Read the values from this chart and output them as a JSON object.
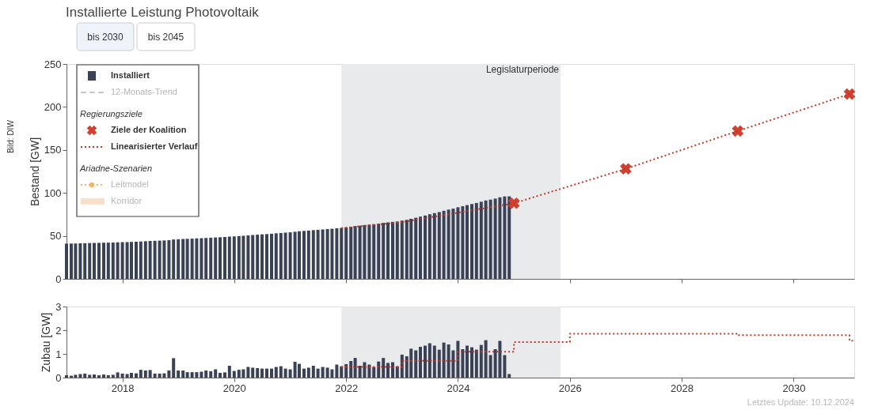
{
  "chart_data": [
    {
      "type": "bar",
      "title": "Installierte Leistung Photovoltaik",
      "ylabel": "Bestand [GW]",
      "x": [
        "2017-01",
        "2017-02",
        "2017-03",
        "2017-04",
        "2017-05",
        "2017-06",
        "2017-07",
        "2017-08",
        "2017-09",
        "2017-10",
        "2017-11",
        "2017-12",
        "2018-01",
        "2018-02",
        "2018-03",
        "2018-04",
        "2018-05",
        "2018-06",
        "2018-07",
        "2018-08",
        "2018-09",
        "2018-10",
        "2018-11",
        "2018-12",
        "2019-01",
        "2019-02",
        "2019-03",
        "2019-04",
        "2019-05",
        "2019-06",
        "2019-07",
        "2019-08",
        "2019-09",
        "2019-10",
        "2019-11",
        "2019-12",
        "2020-01",
        "2020-02",
        "2020-03",
        "2020-04",
        "2020-05",
        "2020-06",
        "2020-07",
        "2020-08",
        "2020-09",
        "2020-10",
        "2020-11",
        "2020-12",
        "2021-01",
        "2021-02",
        "2021-03",
        "2021-04",
        "2021-05",
        "2021-06",
        "2021-07",
        "2021-08",
        "2021-09",
        "2021-10",
        "2021-11",
        "2021-12",
        "2022-01",
        "2022-02",
        "2022-03",
        "2022-04",
        "2022-05",
        "2022-06",
        "2022-07",
        "2022-08",
        "2022-09",
        "2022-10",
        "2022-11",
        "2022-12",
        "2023-01",
        "2023-02",
        "2023-03",
        "2023-04",
        "2023-05",
        "2023-06",
        "2023-07",
        "2023-08",
        "2023-09",
        "2023-10",
        "2023-11",
        "2023-12",
        "2024-01",
        "2024-02",
        "2024-03",
        "2024-04",
        "2024-05",
        "2024-06",
        "2024-07",
        "2024-08",
        "2024-09",
        "2024-10",
        "2024-11",
        "2024-12"
      ],
      "xlim": [
        "2017-01",
        "2031-02"
      ],
      "xticks": [
        {
          "value": "2018",
          "label": null
        },
        {
          "value": "2020",
          "label": null
        },
        {
          "value": "2022",
          "label": null
        },
        {
          "value": "2024",
          "label": null
        },
        {
          "value": "2026",
          "label": null
        },
        {
          "value": "2028",
          "label": null
        },
        {
          "value": "2030",
          "label": null
        }
      ],
      "ylim": [
        0,
        250
      ],
      "yticks": [
        0,
        50,
        100,
        150,
        200,
        250
      ],
      "tick_labels": "y",
      "legend": "top left",
      "bands": [
        {
          "axis": "x",
          "from": "2021-12",
          "to": "2025-11",
          "label": "Legislaturperiode",
          "color": "#e9eaec"
        }
      ],
      "annotations": [
        "bis 2030",
        "bis 2045",
        "Regierungsziele",
        "Ariadne-Szenarien",
        "Bild: DIW"
      ],
      "series": [
        {
          "name": "Installiert",
          "color": "#3b4255",
          "values": [
            41.0,
            41.1,
            41.2,
            41.4,
            41.5,
            41.7,
            41.8,
            41.9,
            42.1,
            42.2,
            42.3,
            42.5,
            42.7,
            42.8,
            43.0,
            43.2,
            43.5,
            43.8,
            44.1,
            44.3,
            44.5,
            44.7,
            45.0,
            45.8,
            46.1,
            46.4,
            46.6,
            46.8,
            47.1,
            47.3,
            47.6,
            47.9,
            48.2,
            48.4,
            48.7,
            49.2,
            49.4,
            49.8,
            50.1,
            50.6,
            51.0,
            51.4,
            51.8,
            52.1,
            52.5,
            53.0,
            53.4,
            53.8,
            54.2,
            54.8,
            55.4,
            55.8,
            56.2,
            56.7,
            57.1,
            57.5,
            58.0,
            58.3,
            58.9,
            59.3,
            59.9,
            60.6,
            61.4,
            61.9,
            62.6,
            63.1,
            63.6,
            64.2,
            65.1,
            65.7,
            66.3,
            66.8,
            67.8,
            68.7,
            69.9,
            71.1,
            72.4,
            73.7,
            75.2,
            76.5,
            77.7,
            79.2,
            80.6,
            81.7,
            83.3,
            84.5,
            85.8,
            87.1,
            88.3,
            89.7,
            91.2,
            92.2,
            93.4,
            94.9,
            95.9,
            96.0
          ]
        },
        {
          "name": "12-Monats-Trend",
          "type": "line",
          "line_style": "dashed",
          "color": "#c8c8c8",
          "values": [
            null,
            null,
            null,
            null,
            null,
            null,
            null,
            null,
            null,
            null,
            null,
            null,
            null,
            null,
            null,
            null,
            null,
            null,
            null,
            null,
            null,
            null,
            null,
            null,
            null,
            null,
            null,
            null,
            null,
            null,
            null,
            null,
            null,
            null,
            null,
            null,
            null,
            null,
            null,
            null,
            null,
            null,
            null,
            null,
            null,
            null,
            null,
            null,
            null,
            null,
            null,
            null,
            null,
            null,
            null,
            null,
            null,
            null,
            null,
            null,
            null,
            null,
            null,
            null,
            null,
            null,
            null,
            null,
            null,
            null,
            null,
            null,
            null,
            null,
            null,
            null,
            null,
            null,
            null,
            null,
            null,
            null,
            null,
            null,
            null,
            null,
            null,
            null,
            null,
            null,
            null,
            null,
            null,
            null,
            null,
            null
          ]
        },
        {
          "name": "Ziele der Koalition",
          "type": "scatter",
          "marker": "cross",
          "color": "#d0412f",
          "x": [
            "2025-01",
            "2027-01",
            "2029-01",
            "2031-01"
          ],
          "values": [
            88,
            128,
            172,
            215
          ]
        },
        {
          "name": "Linearisierter Verlauf",
          "type": "line",
          "line_style": "dotted",
          "color": "#c0392b",
          "x": [
            "2021-12",
            "2023-01",
            "2024-01",
            "2025-01",
            "2027-01",
            "2029-01",
            "2031-01",
            "2031-02"
          ],
          "values": [
            59,
            66,
            77,
            88,
            128,
            172,
            215,
            219
          ]
        },
        {
          "name": "Leitmodel",
          "type": "line",
          "line_style": "dotted",
          "marker": "circle",
          "color": "#f2b36b",
          "values": [
            null,
            null,
            null,
            null,
            null,
            null,
            null,
            null,
            null,
            null,
            null,
            null,
            null,
            null,
            null,
            null,
            null,
            null,
            null,
            null,
            null,
            null,
            null,
            null,
            null,
            null,
            null,
            null,
            null,
            null,
            null,
            null,
            null,
            null,
            null,
            null,
            null,
            null,
            null,
            null,
            null,
            null,
            null,
            null,
            null,
            null,
            null,
            null,
            null,
            null,
            null,
            null,
            null,
            null,
            null,
            null,
            null,
            null,
            null,
            null,
            null,
            null,
            null,
            null,
            null,
            null,
            null,
            null,
            null,
            null,
            null,
            null,
            null,
            null,
            null,
            null,
            null,
            null,
            null,
            null,
            null,
            null,
            null,
            null,
            null,
            null,
            null,
            null,
            null,
            null,
            null,
            null,
            null,
            null,
            null,
            null
          ]
        },
        {
          "name": "Korridor",
          "type": "area",
          "color": "#f7e0cc",
          "values": [
            null,
            null,
            null,
            null,
            null,
            null,
            null,
            null,
            null,
            null,
            null,
            null,
            null,
            null,
            null,
            null,
            null,
            null,
            null,
            null,
            null,
            null,
            null,
            null,
            null,
            null,
            null,
            null,
            null,
            null,
            null,
            null,
            null,
            null,
            null,
            null,
            null,
            null,
            null,
            null,
            null,
            null,
            null,
            null,
            null,
            null,
            null,
            null,
            null,
            null,
            null,
            null,
            null,
            null,
            null,
            null,
            null,
            null,
            null,
            null,
            null,
            null,
            null,
            null,
            null,
            null,
            null,
            null,
            null,
            null,
            null,
            null,
            null,
            null,
            null,
            null,
            null,
            null,
            null,
            null,
            null,
            null,
            null,
            null,
            null,
            null,
            null,
            null,
            null,
            null,
            null,
            null,
            null,
            null,
            null,
            null
          ]
        }
      ]
    },
    {
      "type": "bar",
      "ylabel": "Zubau [GW]",
      "x": [
        "2017-01",
        "2017-02",
        "2017-03",
        "2017-04",
        "2017-05",
        "2017-06",
        "2017-07",
        "2017-08",
        "2017-09",
        "2017-10",
        "2017-11",
        "2017-12",
        "2018-01",
        "2018-02",
        "2018-03",
        "2018-04",
        "2018-05",
        "2018-06",
        "2018-07",
        "2018-08",
        "2018-09",
        "2018-10",
        "2018-11",
        "2018-12",
        "2019-01",
        "2019-02",
        "2019-03",
        "2019-04",
        "2019-05",
        "2019-06",
        "2019-07",
        "2019-08",
        "2019-09",
        "2019-10",
        "2019-11",
        "2019-12",
        "2020-01",
        "2020-02",
        "2020-03",
        "2020-04",
        "2020-05",
        "2020-06",
        "2020-07",
        "2020-08",
        "2020-09",
        "2020-10",
        "2020-11",
        "2020-12",
        "2021-01",
        "2021-02",
        "2021-03",
        "2021-04",
        "2021-05",
        "2021-06",
        "2021-07",
        "2021-08",
        "2021-09",
        "2021-10",
        "2021-11",
        "2021-12",
        "2022-01",
        "2022-02",
        "2022-03",
        "2022-04",
        "2022-05",
        "2022-06",
        "2022-07",
        "2022-08",
        "2022-09",
        "2022-10",
        "2022-11",
        "2022-12",
        "2023-01",
        "2023-02",
        "2023-03",
        "2023-04",
        "2023-05",
        "2023-06",
        "2023-07",
        "2023-08",
        "2023-09",
        "2023-10",
        "2023-11",
        "2023-12",
        "2024-01",
        "2024-02",
        "2024-03",
        "2024-04",
        "2024-05",
        "2024-06",
        "2024-07",
        "2024-08",
        "2024-09",
        "2024-10",
        "2024-11",
        "2024-12"
      ],
      "xlim": [
        "2017-01",
        "2031-02"
      ],
      "xticks": [
        "2018",
        "2020",
        "2022",
        "2024",
        "2026",
        "2028",
        "2030"
      ],
      "ylim": [
        0,
        3
      ],
      "yticks": [
        0,
        1,
        2,
        3
      ],
      "bands": [
        {
          "axis": "x",
          "from": "2021-12",
          "to": "2025-11",
          "color": "#e9eaec"
        }
      ],
      "annotations": [
        "Letztes Update: 10.12.2024"
      ],
      "series": [
        {
          "color": "#3b4255",
          "values": [
            0.1,
            0.08,
            0.12,
            0.15,
            0.17,
            0.12,
            0.13,
            0.1,
            0.13,
            0.1,
            0.12,
            0.22,
            0.17,
            0.15,
            0.2,
            0.18,
            0.33,
            0.3,
            0.32,
            0.17,
            0.17,
            0.18,
            0.3,
            0.82,
            0.3,
            0.3,
            0.23,
            0.23,
            0.23,
            0.25,
            0.3,
            0.27,
            0.35,
            0.2,
            0.22,
            0.5,
            0.28,
            0.33,
            0.35,
            0.45,
            0.42,
            0.4,
            0.38,
            0.38,
            0.38,
            0.45,
            0.48,
            0.38,
            0.35,
            0.67,
            0.58,
            0.38,
            0.42,
            0.5,
            0.38,
            0.45,
            0.42,
            0.35,
            0.55,
            0.48,
            0.57,
            0.7,
            0.83,
            0.5,
            0.65,
            0.55,
            0.45,
            0.68,
            0.83,
            0.62,
            0.65,
            0.48,
            0.97,
            0.9,
            1.22,
            1.15,
            1.3,
            1.35,
            1.45,
            1.35,
            1.18,
            1.48,
            1.4,
            1.15,
            1.55,
            1.2,
            1.35,
            1.28,
            1.18,
            1.38,
            1.58,
            0.95,
            1.2,
            1.55,
            0.95,
            0.15
          ]
        },
        {
          "type": "step",
          "line_style": "dotted",
          "color": "#c0392b",
          "x": [
            "2021-12",
            "2023-01",
            "2024-01",
            "2025-01",
            "2026-01",
            "2029-01",
            "2031-01",
            "2031-02"
          ],
          "values": [
            0.45,
            0.71,
            1.09,
            1.5,
            1.85,
            1.79,
            1.56,
            1.56
          ]
        }
      ]
    }
  ]
}
